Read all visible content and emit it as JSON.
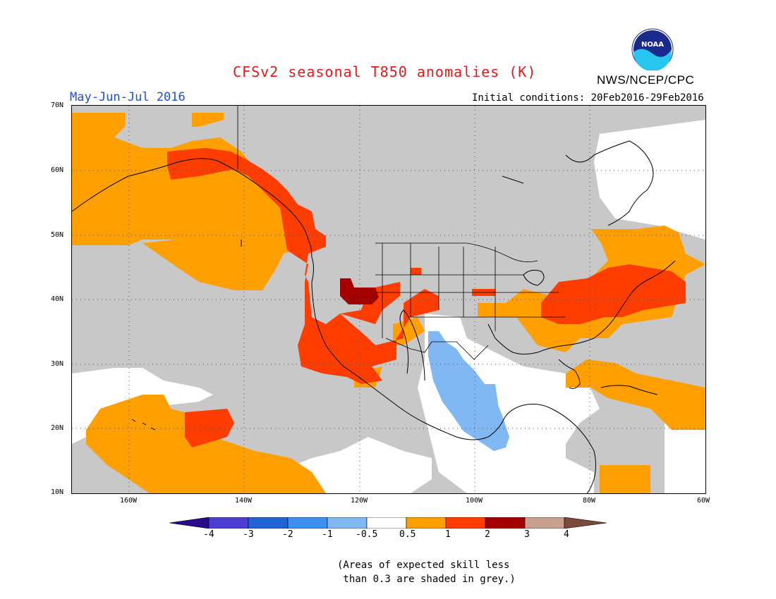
{
  "title": "CFSv2 seasonal T850 anomalies (K)",
  "period": "May-Jun-Jul 2016",
  "agency": "NWS/NCEP/CPC",
  "initial_conditions": "Initial conditions: 20Feb2016-29Feb2016",
  "logo_text": "NOAA",
  "lat_labels": [
    "70N",
    "60N",
    "50N",
    "40N",
    "30N",
    "20N",
    "10N"
  ],
  "lon_labels": [
    "160W",
    "140W",
    "120W",
    "100W",
    "80W",
    "60W"
  ],
  "colorbar": {
    "labels": [
      "-4",
      "-3",
      "-2",
      "-1",
      "-0.5",
      "0.5",
      "1",
      "2",
      "3",
      "4"
    ],
    "colors": [
      "#2a0a8c",
      "#4b3fd1",
      "#1f63d4",
      "#3d8ff0",
      "#7fb8f2",
      "#ffffff",
      "#ffa000",
      "#ff3d00",
      "#a50000",
      "#c8a090",
      "#7a4a3a"
    ]
  },
  "note_line1": "(Areas of expected skill less",
  "note_line2": " than 0.3 are shaded in grey.)",
  "legend_colors": {
    "grey": "#c8c8c8",
    "white": "#ffffff",
    "orange": "#ffa000",
    "red": "#ff3d00",
    "darkred": "#a50000",
    "lightblue": "#7fb8f2"
  }
}
